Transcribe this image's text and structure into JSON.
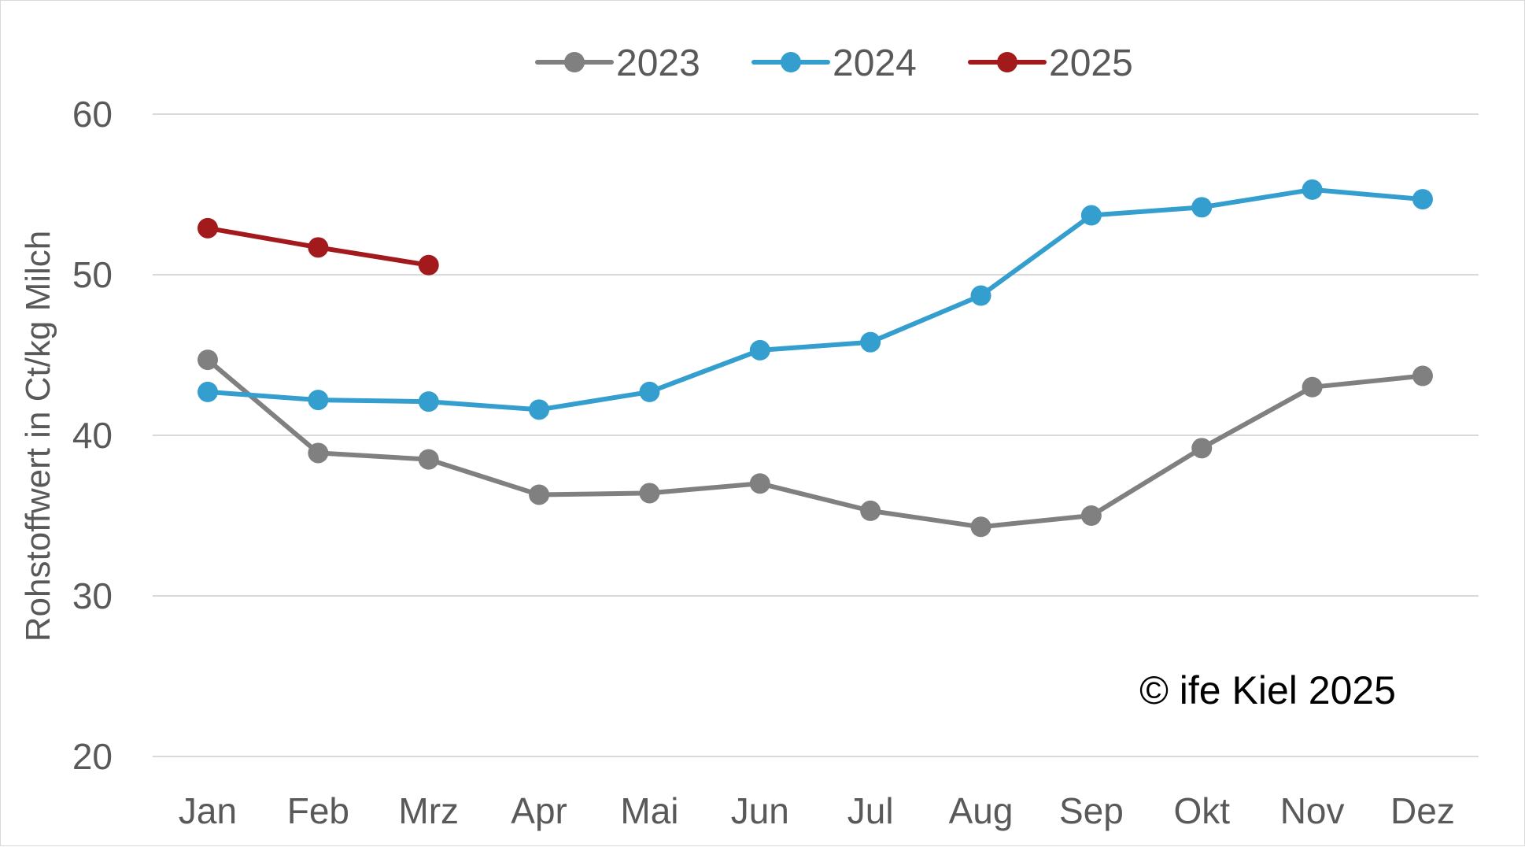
{
  "chart_data": {
    "type": "line",
    "title": "",
    "xlabel": "",
    "ylabel": "Rohstoffwert in Ct/kg Milch",
    "ylim": [
      20,
      60
    ],
    "yticks": [
      20,
      30,
      40,
      50,
      60
    ],
    "grid": true,
    "legend_position": "top-center",
    "categories": [
      "Jan",
      "Feb",
      "Mrz",
      "Apr",
      "Mai",
      "Jun",
      "Jul",
      "Aug",
      "Sep",
      "Okt",
      "Nov",
      "Dez"
    ],
    "series": [
      {
        "name": "2023",
        "color": "#808080",
        "values": [
          44.7,
          38.9,
          38.5,
          36.3,
          36.4,
          37.0,
          35.3,
          34.3,
          35.0,
          39.2,
          43.0,
          43.7
        ]
      },
      {
        "name": "2024",
        "color": "#349fcf",
        "values": [
          42.7,
          42.2,
          42.1,
          41.6,
          42.7,
          45.3,
          45.8,
          48.7,
          53.7,
          54.2,
          55.3,
          54.7
        ]
      },
      {
        "name": "2025",
        "color": "#a31a1d",
        "values": [
          52.9,
          51.7,
          50.6,
          null,
          null,
          null,
          null,
          null,
          null,
          null,
          null,
          null
        ]
      }
    ],
    "annotations": [
      {
        "text": "© ife Kiel 2025"
      }
    ]
  }
}
